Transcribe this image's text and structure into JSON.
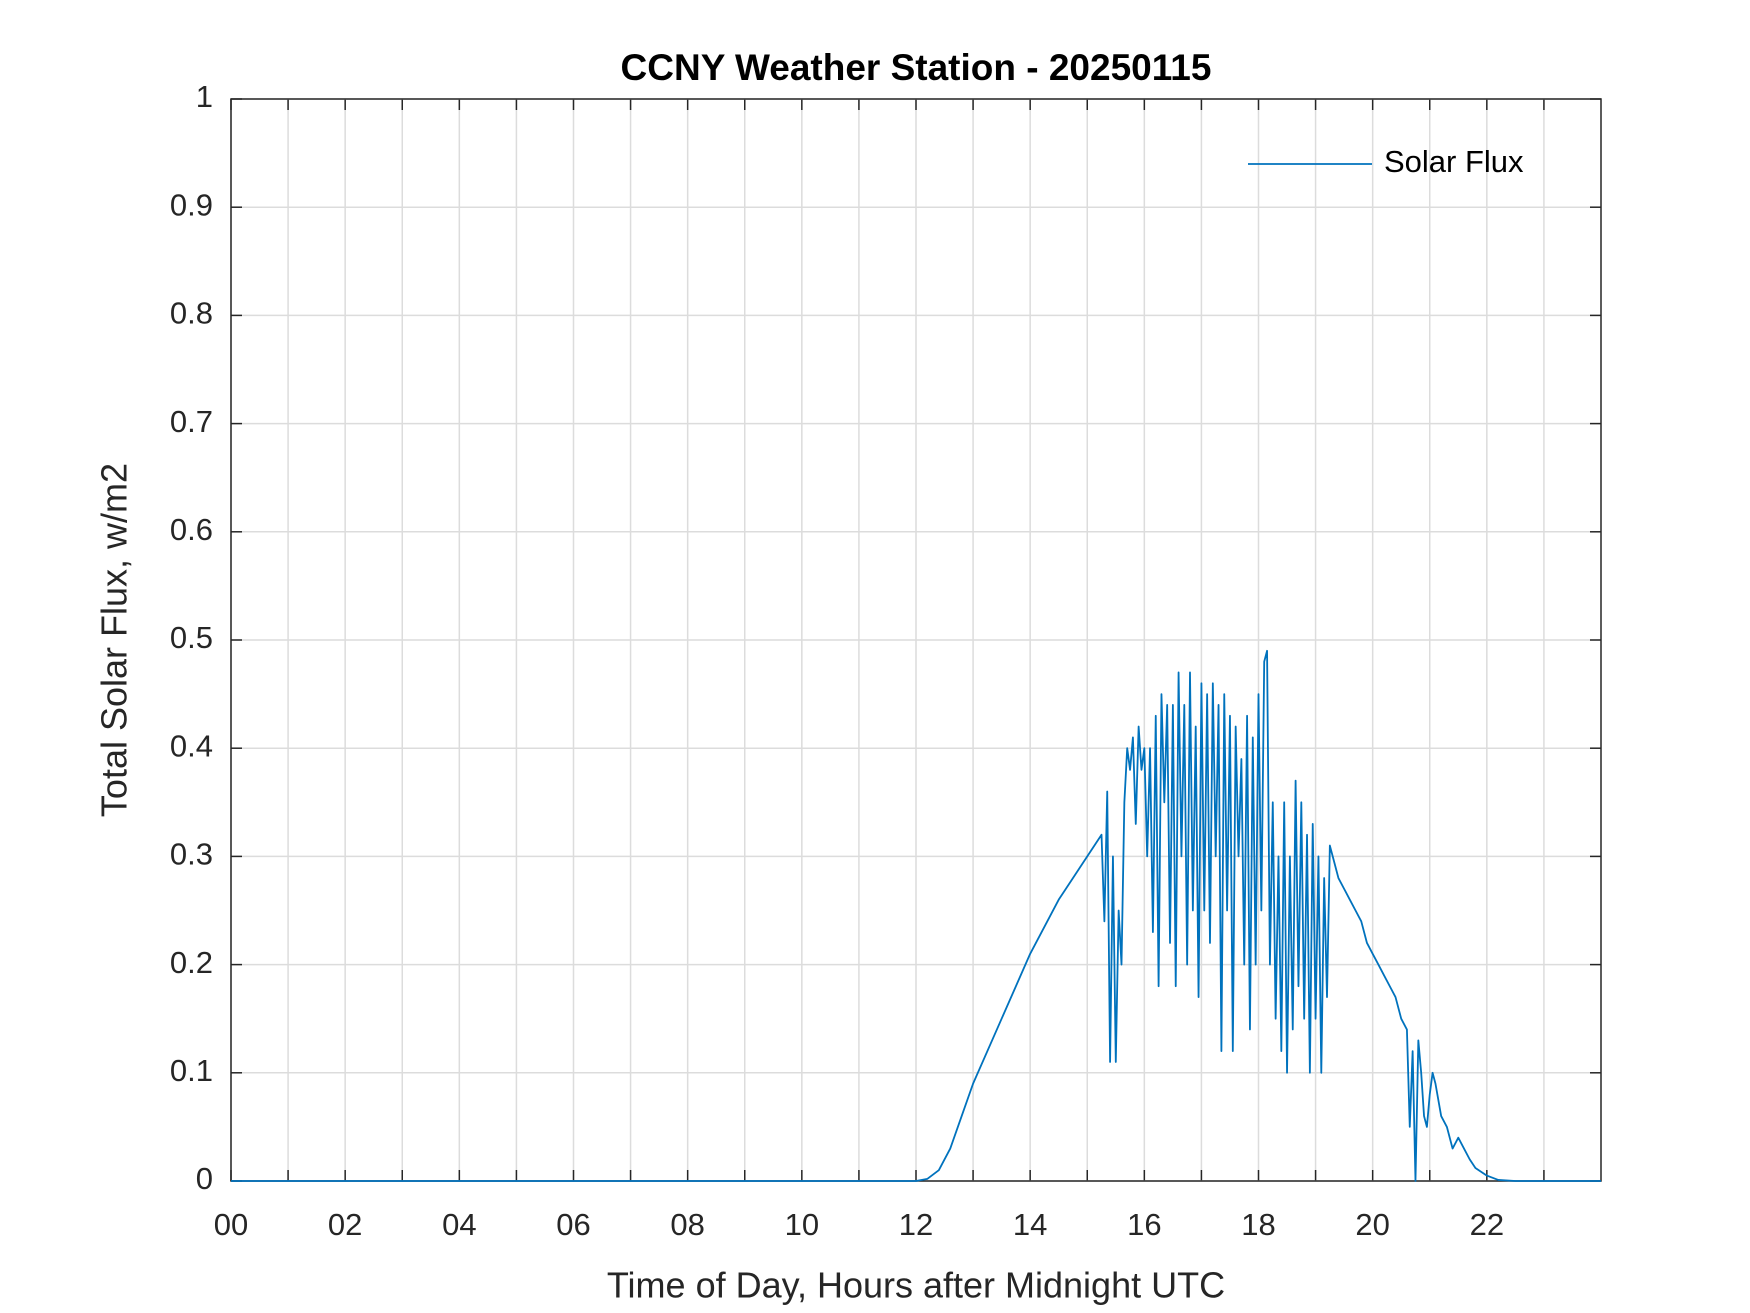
{
  "chart_data": {
    "type": "line",
    "title": "CCNY Weather Station - 20250115",
    "xlabel": "Time of Day, Hours after Midnight UTC",
    "ylabel": "Total Solar Flux, w/m2",
    "xlim": [
      0,
      24
    ],
    "ylim": [
      0,
      1
    ],
    "xticks": [
      {
        "value": 0,
        "label": "00"
      },
      {
        "value": 2,
        "label": "02"
      },
      {
        "value": 4,
        "label": "04"
      },
      {
        "value": 6,
        "label": "06"
      },
      {
        "value": 8,
        "label": "08"
      },
      {
        "value": 10,
        "label": "10"
      },
      {
        "value": 12,
        "label": "12"
      },
      {
        "value": 14,
        "label": "14"
      },
      {
        "value": 16,
        "label": "16"
      },
      {
        "value": 18,
        "label": "18"
      },
      {
        "value": 20,
        "label": "20"
      },
      {
        "value": 22,
        "label": "22"
      }
    ],
    "xminorticks": [
      1,
      3,
      5,
      7,
      9,
      11,
      13,
      15,
      17,
      19,
      21,
      23
    ],
    "yticks": [
      0,
      0.1,
      0.2,
      0.3,
      0.4,
      0.5,
      0.6,
      0.7,
      0.8,
      0.9,
      1
    ],
    "grid": true,
    "legend": "upper right",
    "x": [
      0,
      12.0,
      12.2,
      12.4,
      12.6,
      12.8,
      13.0,
      13.5,
      14.0,
      14.5,
      15.0,
      15.25,
      15.3,
      15.35,
      15.4,
      15.45,
      15.5,
      15.55,
      15.6,
      15.65,
      15.7,
      15.75,
      15.8,
      15.85,
      15.9,
      15.95,
      16.0,
      16.05,
      16.1,
      16.15,
      16.2,
      16.25,
      16.3,
      16.35,
      16.4,
      16.45,
      16.5,
      16.55,
      16.6,
      16.65,
      16.7,
      16.75,
      16.8,
      16.85,
      16.9,
      16.95,
      17.0,
      17.05,
      17.1,
      17.15,
      17.2,
      17.25,
      17.3,
      17.35,
      17.4,
      17.45,
      17.5,
      17.55,
      17.6,
      17.65,
      17.7,
      17.75,
      17.8,
      17.85,
      17.9,
      17.95,
      18.0,
      18.05,
      18.1,
      18.15,
      18.2,
      18.25,
      18.3,
      18.35,
      18.4,
      18.45,
      18.5,
      18.55,
      18.6,
      18.65,
      18.7,
      18.75,
      18.8,
      18.85,
      18.9,
      18.95,
      19.0,
      19.05,
      19.1,
      19.15,
      19.2,
      19.25,
      19.3,
      19.4,
      19.5,
      19.6,
      19.7,
      19.8,
      19.9,
      20.0,
      20.1,
      20.2,
      20.3,
      20.4,
      20.5,
      20.6,
      20.65,
      20.7,
      20.75,
      20.8,
      20.85,
      20.9,
      20.95,
      21.0,
      21.05,
      21.1,
      21.2,
      21.3,
      21.4,
      21.5,
      21.6,
      21.7,
      21.8,
      22.0,
      22.2,
      22.5,
      24
    ],
    "series": [
      {
        "name": "Solar Flux",
        "color": "#0072bd",
        "values": [
          0,
          0,
          0.002,
          0.01,
          0.03,
          0.06,
          0.09,
          0.15,
          0.21,
          0.26,
          0.3,
          0.32,
          0.24,
          0.36,
          0.11,
          0.3,
          0.11,
          0.25,
          0.2,
          0.35,
          0.4,
          0.38,
          0.41,
          0.33,
          0.42,
          0.38,
          0.4,
          0.3,
          0.4,
          0.23,
          0.43,
          0.18,
          0.45,
          0.35,
          0.44,
          0.22,
          0.44,
          0.18,
          0.47,
          0.3,
          0.44,
          0.2,
          0.47,
          0.25,
          0.42,
          0.17,
          0.46,
          0.25,
          0.45,
          0.22,
          0.46,
          0.3,
          0.44,
          0.12,
          0.45,
          0.25,
          0.43,
          0.12,
          0.42,
          0.3,
          0.39,
          0.2,
          0.43,
          0.14,
          0.41,
          0.2,
          0.45,
          0.25,
          0.48,
          0.49,
          0.2,
          0.35,
          0.15,
          0.3,
          0.12,
          0.35,
          0.1,
          0.3,
          0.14,
          0.37,
          0.18,
          0.35,
          0.15,
          0.32,
          0.1,
          0.33,
          0.15,
          0.3,
          0.1,
          0.28,
          0.17,
          0.31,
          0.3,
          0.28,
          0.27,
          0.26,
          0.25,
          0.24,
          0.22,
          0.21,
          0.2,
          0.19,
          0.18,
          0.17,
          0.15,
          0.14,
          0.05,
          0.12,
          0,
          0.13,
          0.1,
          0.06,
          0.05,
          0.08,
          0.1,
          0.09,
          0.06,
          0.05,
          0.03,
          0.04,
          0.03,
          0.02,
          0.012,
          0.005,
          0.001,
          0,
          0
        ]
      }
    ]
  }
}
